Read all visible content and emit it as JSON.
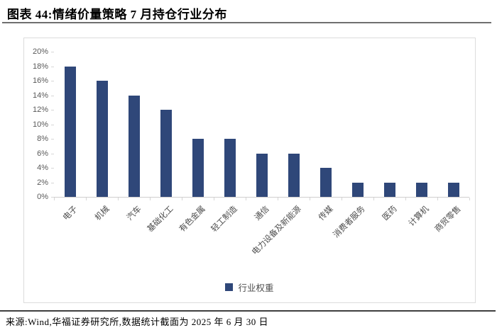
{
  "header": {
    "title": "图表 44:情绪价量策略 7 月持仓行业分布"
  },
  "chart_data": {
    "type": "bar",
    "title": "情绪价量策略 7 月持仓行业分布",
    "categories": [
      "电子",
      "机械",
      "汽车",
      "基础化工",
      "有色金属",
      "轻工制造",
      "通信",
      "电力设备及新能源",
      "传媒",
      "消费者服务",
      "医药",
      "计算机",
      "商贸零售"
    ],
    "values": [
      18,
      16,
      14,
      12,
      8,
      8,
      6,
      6,
      4,
      2,
      2,
      2,
      2
    ],
    "unit": "%",
    "xlabel": "",
    "ylabel": "",
    "ylim": [
      0,
      20
    ],
    "ytick_step": 2,
    "ytick_labels": [
      "0%",
      "2%",
      "4%",
      "6%",
      "8%",
      "10%",
      "12%",
      "14%",
      "16%",
      "18%",
      "20%"
    ],
    "grid": false,
    "legend": [
      "行业权重"
    ],
    "legend_position": "bottom"
  },
  "colors": {
    "bar": "#2f4779",
    "axis_text": "#595959",
    "category_text": "#4d4d4d",
    "chart_border": "#dcdcdc",
    "baseline": "#d0cece",
    "title_underline": "#6f6f6f",
    "footer_rule": "#3f3f3f"
  },
  "footer": {
    "source": "来源:Wind,华福证券研究所,数据统计截面为 2025 年 6 月 30 日"
  }
}
